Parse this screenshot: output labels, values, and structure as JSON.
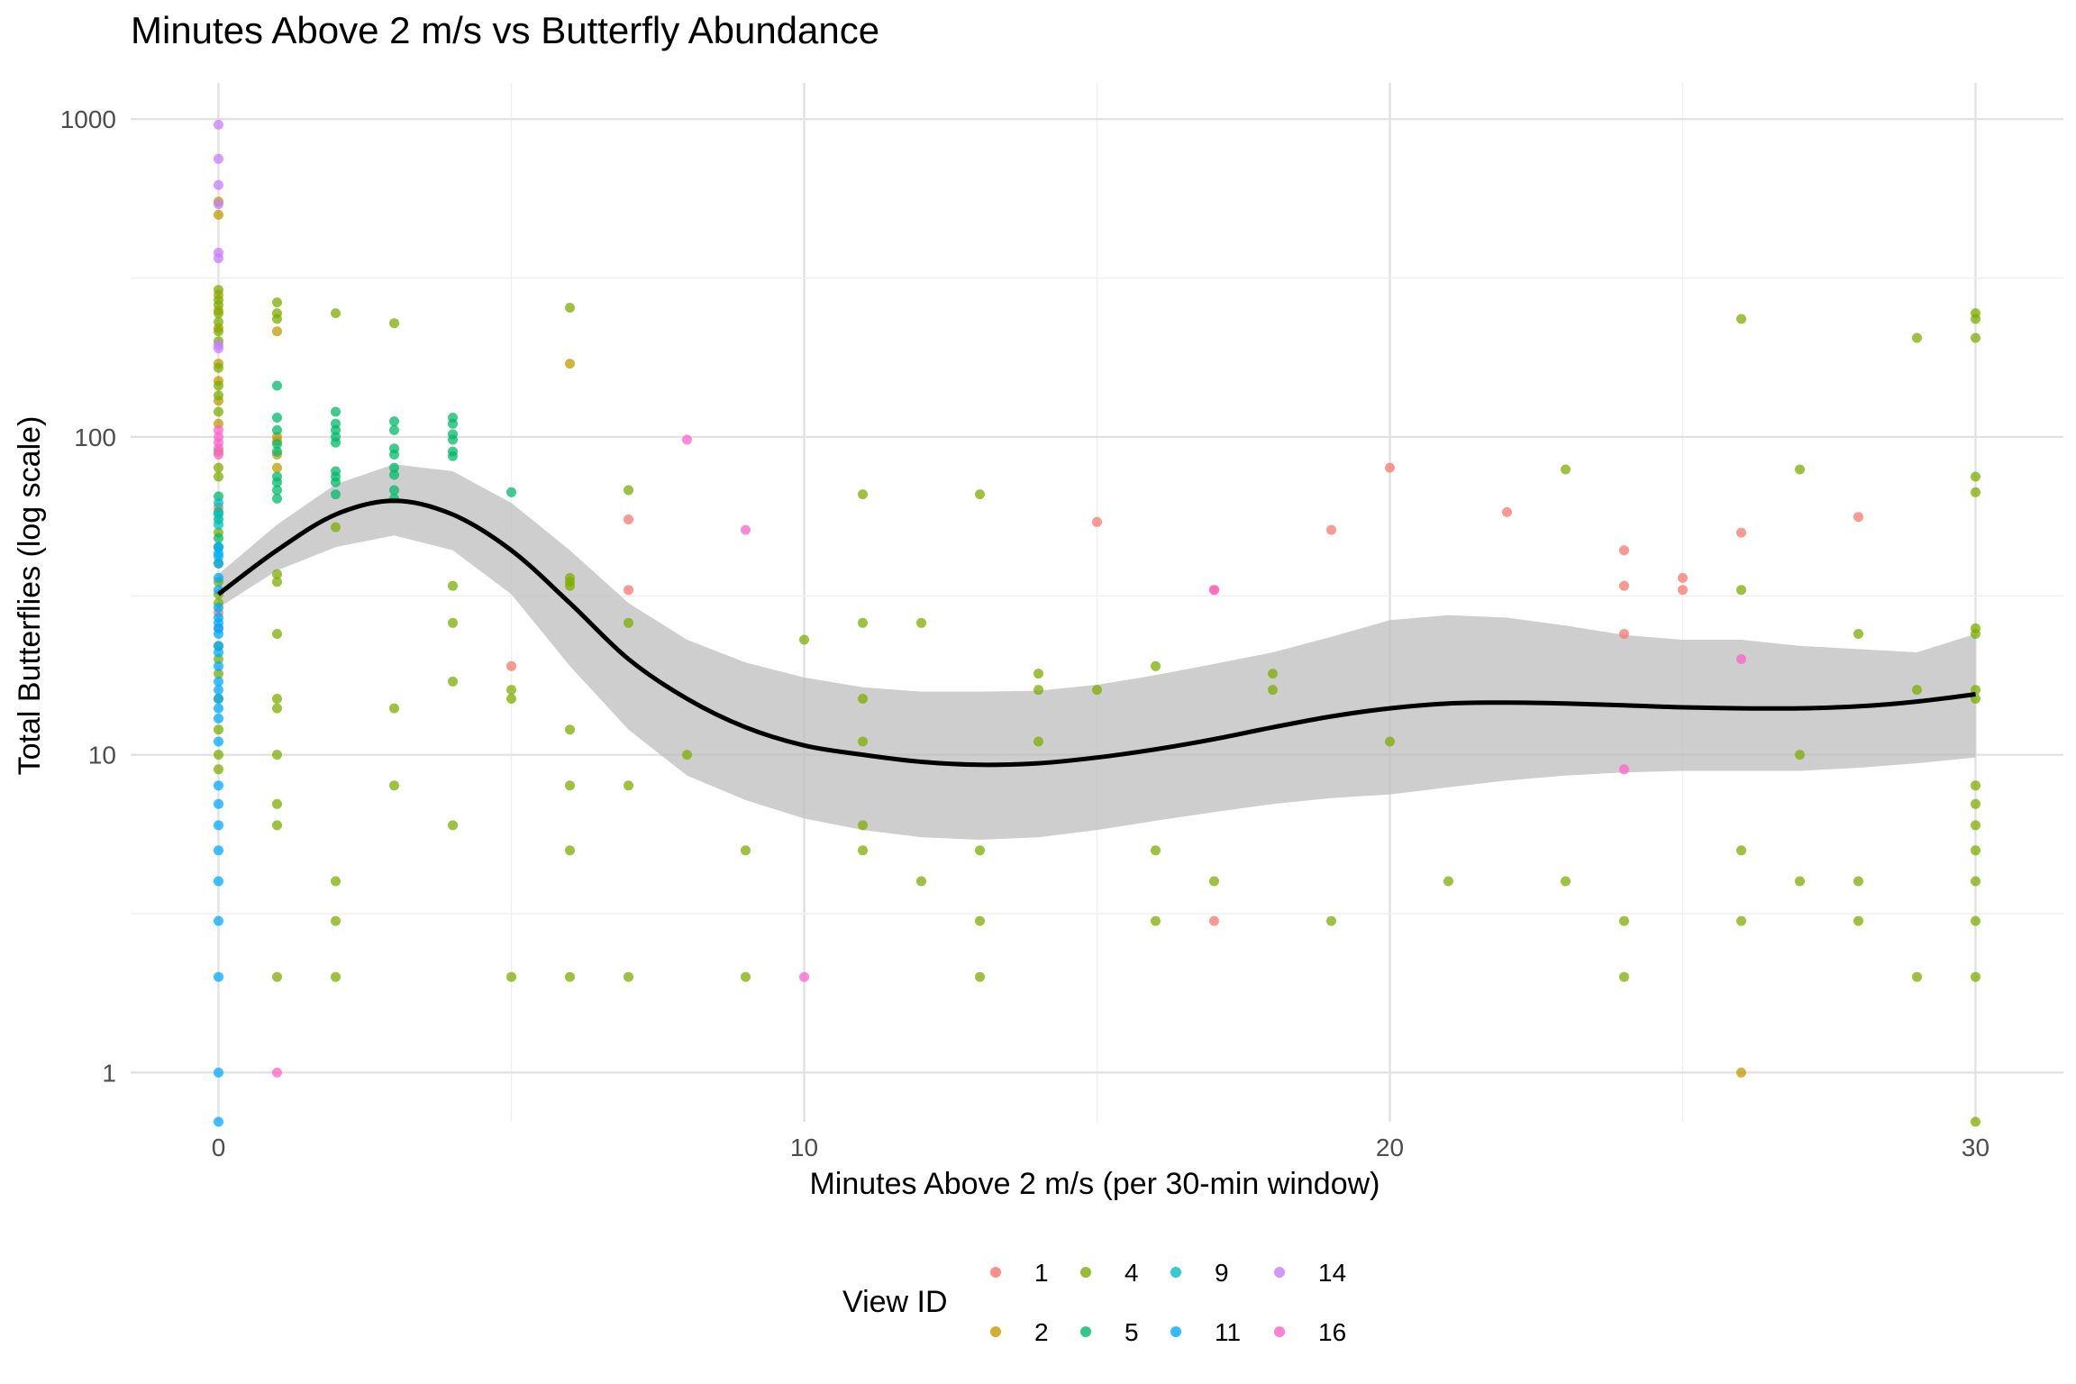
{
  "chart_data": {
    "type": "scatter",
    "title": "Minutes Above 2 m/s vs Butterfly Abundance",
    "xlabel": "Minutes Above 2 m/s (per 30-min window)",
    "ylabel": "Total Butterflies (log scale)",
    "xlim": [
      -1.5,
      31.5
    ],
    "ylim": [
      0.7,
      1300
    ],
    "yscale": "log",
    "x_ticks": [
      0,
      10,
      20,
      30
    ],
    "y_ticks": [
      1,
      10,
      100,
      1000
    ],
    "x_tick_labels": [
      "0",
      "10",
      "20",
      "30"
    ],
    "y_tick_labels": [
      "1",
      "10",
      "100",
      "1000"
    ],
    "grid": true,
    "legend": {
      "title": "View ID",
      "position": "bottom",
      "entries": [
        {
          "label": "1",
          "color": "#F8766D"
        },
        {
          "label": "2",
          "color": "#C49A00"
        },
        {
          "label": "4",
          "color": "#7CAE00"
        },
        {
          "label": "5",
          "color": "#00BA6A"
        },
        {
          "label": "9",
          "color": "#00BFC4"
        },
        {
          "label": "11",
          "color": "#00A9FF"
        },
        {
          "label": "14",
          "color": "#C77CFF"
        },
        {
          "label": "16",
          "color": "#FF61CC"
        }
      ]
    },
    "series": [
      {
        "name": "1",
        "color": "#F8766D",
        "points": [
          [
            0,
            60
          ],
          [
            0,
            28
          ],
          [
            0,
            25
          ],
          [
            5,
            19
          ],
          [
            7,
            55
          ],
          [
            7,
            33
          ],
          [
            15,
            54
          ],
          [
            17,
            33
          ],
          [
            17,
            3
          ],
          [
            19,
            51
          ],
          [
            20,
            80
          ],
          [
            22,
            58
          ],
          [
            24,
            44
          ],
          [
            24,
            34
          ],
          [
            24,
            24
          ],
          [
            25,
            36
          ],
          [
            25,
            33
          ],
          [
            26,
            50
          ],
          [
            28,
            56
          ]
        ]
      },
      {
        "name": "2",
        "color": "#C49A00",
        "points": [
          [
            0,
            550
          ],
          [
            0,
            500
          ],
          [
            0,
            280
          ],
          [
            0,
            250
          ],
          [
            0,
            220
          ],
          [
            0,
            170
          ],
          [
            0,
            150
          ],
          [
            0,
            130
          ],
          [
            0,
            110
          ],
          [
            1,
            215
          ],
          [
            1,
            100
          ],
          [
            1,
            97
          ],
          [
            1,
            88
          ],
          [
            1,
            80
          ],
          [
            6,
            170
          ],
          [
            26,
            1
          ]
        ]
      },
      {
        "name": "4",
        "color": "#7CAE00",
        "points": [
          [
            0,
            290
          ],
          [
            0,
            270
          ],
          [
            0,
            260
          ],
          [
            0,
            245
          ],
          [
            0,
            230
          ],
          [
            0,
            215
          ],
          [
            0,
            200
          ],
          [
            0,
            165
          ],
          [
            0,
            145
          ],
          [
            0,
            135
          ],
          [
            0,
            120
          ],
          [
            0,
            90
          ],
          [
            0,
            80
          ],
          [
            0,
            75
          ],
          [
            0,
            50
          ],
          [
            0,
            40
          ],
          [
            0,
            35
          ],
          [
            0,
            32
          ],
          [
            0,
            30
          ],
          [
            0,
            22
          ],
          [
            0,
            20
          ],
          [
            0,
            18
          ],
          [
            0,
            15
          ],
          [
            0,
            12
          ],
          [
            0,
            10
          ],
          [
            0,
            9
          ],
          [
            1,
            265
          ],
          [
            1,
            245
          ],
          [
            1,
            235
          ],
          [
            1,
            37
          ],
          [
            1,
            35
          ],
          [
            1,
            24
          ],
          [
            1,
            15
          ],
          [
            1,
            14
          ],
          [
            1,
            10
          ],
          [
            1,
            7
          ],
          [
            1,
            6
          ],
          [
            1,
            2
          ],
          [
            2,
            245
          ],
          [
            2,
            52
          ],
          [
            2,
            4
          ],
          [
            2,
            3
          ],
          [
            2,
            2
          ],
          [
            3,
            228
          ],
          [
            3,
            14
          ],
          [
            3,
            8
          ],
          [
            4,
            34
          ],
          [
            4,
            26
          ],
          [
            4,
            17
          ],
          [
            4,
            6
          ],
          [
            5,
            16
          ],
          [
            5,
            15
          ],
          [
            5,
            2
          ],
          [
            6,
            255
          ],
          [
            6,
            36
          ],
          [
            6,
            35
          ],
          [
            6,
            34
          ],
          [
            6,
            12
          ],
          [
            6,
            8
          ],
          [
            6,
            5
          ],
          [
            6,
            2
          ],
          [
            7,
            68
          ],
          [
            7,
            26
          ],
          [
            7,
            8
          ],
          [
            7,
            2
          ],
          [
            8,
            10
          ],
          [
            9,
            5
          ],
          [
            9,
            2
          ],
          [
            10,
            23
          ],
          [
            11,
            66
          ],
          [
            11,
            26
          ],
          [
            11,
            15
          ],
          [
            11,
            11
          ],
          [
            11,
            6
          ],
          [
            11,
            5
          ],
          [
            12,
            26
          ],
          [
            12,
            4
          ],
          [
            13,
            66
          ],
          [
            13,
            5
          ],
          [
            13,
            3
          ],
          [
            13,
            2
          ],
          [
            14,
            18
          ],
          [
            14,
            16
          ],
          [
            14,
            11
          ],
          [
            15,
            16
          ],
          [
            16,
            19
          ],
          [
            16,
            5
          ],
          [
            16,
            3
          ],
          [
            17,
            4
          ],
          [
            18,
            18
          ],
          [
            18,
            16
          ],
          [
            19,
            3
          ],
          [
            20,
            11
          ],
          [
            21,
            4
          ],
          [
            23,
            79
          ],
          [
            23,
            4
          ],
          [
            24,
            3
          ],
          [
            24,
            2
          ],
          [
            26,
            235
          ],
          [
            26,
            33
          ],
          [
            26,
            5
          ],
          [
            26,
            3
          ],
          [
            27,
            79
          ],
          [
            27,
            10
          ],
          [
            27,
            4
          ],
          [
            28,
            24
          ],
          [
            28,
            4
          ],
          [
            28,
            3
          ],
          [
            29,
            205
          ],
          [
            29,
            16
          ],
          [
            29,
            2
          ],
          [
            30,
            245
          ],
          [
            30,
            235
          ],
          [
            30,
            205
          ],
          [
            30,
            75
          ],
          [
            30,
            67
          ],
          [
            30,
            25
          ],
          [
            30,
            24
          ],
          [
            30,
            16
          ],
          [
            30,
            15
          ],
          [
            30,
            8
          ],
          [
            30,
            7
          ],
          [
            30,
            6
          ],
          [
            30,
            5
          ],
          [
            30,
            4
          ],
          [
            30,
            3
          ],
          [
            30,
            2
          ],
          [
            30,
            0.7
          ]
        ]
      },
      {
        "name": "5",
        "color": "#00BA6A",
        "points": [
          [
            0,
            65
          ],
          [
            0,
            58
          ],
          [
            0,
            55
          ],
          [
            0,
            48
          ],
          [
            0,
            45
          ],
          [
            1,
            145
          ],
          [
            1,
            115
          ],
          [
            1,
            105
          ],
          [
            1,
            95
          ],
          [
            1,
            90
          ],
          [
            1,
            75
          ],
          [
            1,
            72
          ],
          [
            1,
            68
          ],
          [
            1,
            64
          ],
          [
            2,
            120
          ],
          [
            2,
            110
          ],
          [
            2,
            105
          ],
          [
            2,
            100
          ],
          [
            2,
            96
          ],
          [
            2,
            78
          ],
          [
            2,
            75
          ],
          [
            2,
            72
          ],
          [
            2,
            66
          ],
          [
            3,
            112
          ],
          [
            3,
            105
          ],
          [
            3,
            92
          ],
          [
            3,
            88
          ],
          [
            3,
            80
          ],
          [
            3,
            76
          ],
          [
            3,
            68
          ],
          [
            3,
            64
          ],
          [
            4,
            115
          ],
          [
            4,
            110
          ],
          [
            4,
            102
          ],
          [
            4,
            98
          ],
          [
            4,
            90
          ],
          [
            4,
            87
          ],
          [
            5,
            67
          ]
        ]
      },
      {
        "name": "9",
        "color": "#00BFC4",
        "points": [
          [
            0,
            62
          ],
          [
            0,
            57
          ],
          [
            0,
            53
          ],
          [
            0,
            42
          ]
        ]
      },
      {
        "name": "11",
        "color": "#00A9FF",
        "points": [
          [
            0,
            45
          ],
          [
            0,
            43
          ],
          [
            0,
            40
          ],
          [
            0,
            36
          ],
          [
            0,
            33
          ],
          [
            0,
            29
          ],
          [
            0,
            27
          ],
          [
            0,
            26
          ],
          [
            0,
            25
          ],
          [
            0,
            24
          ],
          [
            0,
            22
          ],
          [
            0,
            21
          ],
          [
            0,
            19
          ],
          [
            0,
            17
          ],
          [
            0,
            16
          ],
          [
            0,
            15
          ],
          [
            0,
            14
          ],
          [
            0,
            13
          ],
          [
            0,
            11
          ],
          [
            0,
            8
          ],
          [
            0,
            7
          ],
          [
            0,
            6
          ],
          [
            0,
            5
          ],
          [
            0,
            4
          ],
          [
            0,
            3
          ],
          [
            0,
            2
          ],
          [
            0,
            1
          ],
          [
            0,
            0.7
          ]
        ]
      },
      {
        "name": "14",
        "color": "#C77CFF",
        "points": [
          [
            0,
            960
          ],
          [
            0,
            750
          ],
          [
            0,
            620
          ],
          [
            0,
            540
          ],
          [
            0,
            380
          ],
          [
            0,
            365
          ],
          [
            0,
            195
          ],
          [
            0,
            190
          ]
        ]
      },
      {
        "name": "16",
        "color": "#FF61CC",
        "points": [
          [
            0,
            105
          ],
          [
            0,
            100
          ],
          [
            0,
            96
          ],
          [
            0,
            92
          ],
          [
            0,
            88
          ],
          [
            1,
            1
          ],
          [
            8,
            98
          ],
          [
            9,
            51
          ],
          [
            10,
            2
          ],
          [
            17,
            33
          ],
          [
            24,
            9
          ],
          [
            26,
            20
          ]
        ]
      }
    ],
    "smooth": {
      "name": "smooth fit",
      "color": "#000000",
      "band_color": "#bebebe",
      "x": [
        0,
        1,
        2,
        3,
        4,
        5,
        6,
        7,
        8,
        9,
        10,
        11,
        12,
        13,
        14,
        15,
        16,
        17,
        18,
        19,
        20,
        21,
        22,
        23,
        24,
        25,
        26,
        27,
        28,
        29,
        30
      ],
      "y": [
        32,
        44,
        57,
        63,
        57,
        44,
        30,
        20,
        15,
        12.2,
        10.7,
        10.0,
        9.5,
        9.3,
        9.4,
        9.8,
        10.4,
        11.2,
        12.2,
        13.2,
        14.0,
        14.5,
        14.6,
        14.5,
        14.3,
        14.1,
        14.0,
        14.0,
        14.2,
        14.7,
        15.5
      ],
      "lower": [
        29,
        38,
        45,
        49,
        44,
        32,
        19,
        12,
        8.6,
        7.2,
        6.3,
        5.8,
        5.5,
        5.4,
        5.5,
        5.8,
        6.2,
        6.6,
        7.0,
        7.3,
        7.5,
        7.9,
        8.3,
        8.6,
        8.8,
        8.9,
        8.9,
        8.9,
        9.1,
        9.4,
        9.8
      ],
      "upper": [
        37,
        53,
        71,
        82,
        78,
        62,
        44,
        30,
        23,
        19.5,
        17.5,
        16.3,
        15.8,
        15.8,
        15.9,
        16.6,
        17.8,
        19.3,
        21.0,
        23.5,
        26.5,
        27.5,
        27.0,
        25.5,
        23.8,
        23.0,
        23.0,
        22.0,
        21.5,
        21.0,
        24.0
      ]
    }
  }
}
